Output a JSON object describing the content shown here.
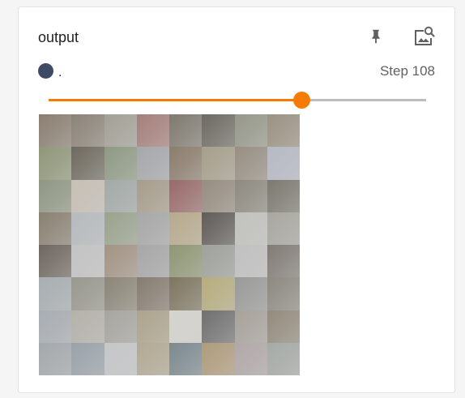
{
  "card": {
    "title": "output",
    "pin_icon": "pin-icon",
    "zoom_icon": "image-search-icon"
  },
  "run": {
    "color": "#3f4a64",
    "name": "."
  },
  "step": {
    "label": "Step 108",
    "slider_fraction": 0.67,
    "accent_color": "#f57c00"
  },
  "image": {
    "tile_colors": [
      "#8a7e70",
      "#8b8378",
      "#a3a196",
      "#a67f7a",
      "#7f7a6f",
      "#6e6a63",
      "#97988a",
      "#9b9282",
      "#8f9778",
      "#6f6a5f",
      "#8e9a83",
      "#a6a8ab",
      "#8c7d6c",
      "#a69f8b",
      "#978f83",
      "#b6bac4",
      "#8f9783",
      "#c7c0b5",
      "#a3aaa8",
      "#a79d8b",
      "#9a6a6a",
      "#968d80",
      "#8e8a80",
      "#7c7a70",
      "#898070",
      "#b7bbbd",
      "#9aa38e",
      "#a8a8a8",
      "#b8aa8c",
      "#605c58",
      "#c2c2be",
      "#a8a7a0",
      "#6f6760",
      "#c4c4c4",
      "#a39484",
      "#a7a7a7",
      "#8f9774",
      "#9fa29b",
      "#c1c1c1",
      "#827c76",
      "#a8aeb2",
      "#98988e",
      "#8c8678",
      "#867c70",
      "#7f7660",
      "#b7ad7d",
      "#9a9a98",
      "#8e8a82",
      "#a8adb3",
      "#b5b2ab",
      "#a7a6a0",
      "#ada48c",
      "#d5d4cf",
      "#707070",
      "#a8a29c",
      "#938b7c",
      "#a4a9ad",
      "#9aa3aa",
      "#c5c7c8",
      "#b3aa94",
      "#7c8a8f",
      "#b09c7c",
      "#b2a8a8",
      "#a6aba7"
    ]
  }
}
